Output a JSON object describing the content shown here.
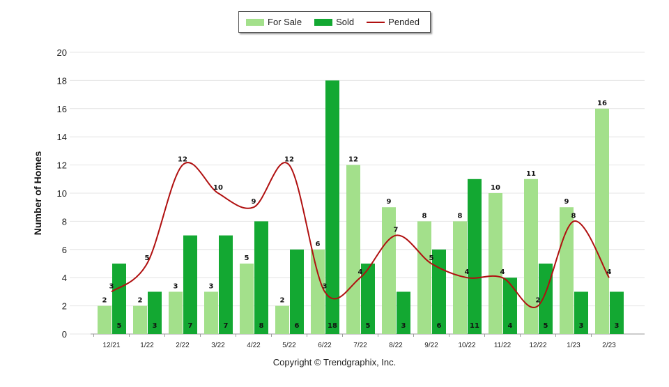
{
  "chart_data": {
    "type": "bar",
    "title": "",
    "xlabel": "",
    "ylabel": "Number of Homes",
    "ylim": [
      0,
      20
    ],
    "yticks": [
      0,
      2,
      4,
      6,
      8,
      10,
      12,
      14,
      16,
      18,
      20
    ],
    "grid": true,
    "legend_position": "top-center",
    "categories": [
      "12/21",
      "1/22",
      "2/22",
      "3/22",
      "4/22",
      "5/22",
      "6/22",
      "7/22",
      "8/22",
      "9/22",
      "10/22",
      "11/22",
      "12/22",
      "1/23",
      "2/23"
    ],
    "series": [
      {
        "name": "For Sale",
        "kind": "bar",
        "color": "#a3e08b",
        "values": [
          2,
          2,
          3,
          3,
          5,
          2,
          6,
          12,
          9,
          8,
          8,
          10,
          11,
          9,
          16
        ]
      },
      {
        "name": "Sold",
        "kind": "bar",
        "color": "#13a832",
        "values": [
          5,
          3,
          7,
          7,
          8,
          6,
          18,
          5,
          3,
          6,
          11,
          4,
          5,
          3,
          3
        ]
      },
      {
        "name": "Pended",
        "kind": "line",
        "color": "#b01010",
        "values": [
          3,
          5,
          12,
          10,
          9,
          12,
          3,
          4,
          7,
          5,
          4,
          4,
          2,
          8,
          4
        ]
      }
    ]
  },
  "legend": {
    "items": [
      "For Sale",
      "Sold",
      "Pended"
    ]
  },
  "footer": {
    "copyright": "Copyright © Trendgraphix, Inc."
  }
}
